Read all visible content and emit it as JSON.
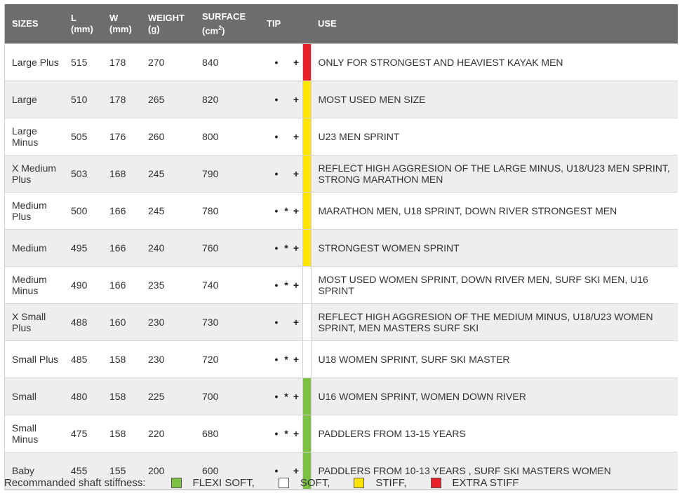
{
  "headers": {
    "sizes": "SIZES",
    "l": "L",
    "l_unit": "(mm)",
    "w": "W",
    "w_unit": "(mm)",
    "weight": "WEIGHT",
    "weight_unit": "(g)",
    "surface": "SURFACE",
    "surface_unit_pre": "(cm",
    "surface_unit_sup": "2",
    "surface_unit_post": ")",
    "tip": "TIP",
    "use": "USE"
  },
  "colors": {
    "flexi_soft": "#7dc142",
    "soft": "#ffffff",
    "stiff": "#ffe500",
    "extra_stiff": "#e8202a"
  },
  "rows": [
    {
      "size": "Large Plus",
      "l": "515",
      "w": "178",
      "weight": "270",
      "surface": "840",
      "tip": [
        "•",
        "",
        "+"
      ],
      "stiffness": "extra_stiff",
      "use": "ONLY FOR STRONGEST AND HEAVIEST KAYAK MEN"
    },
    {
      "size": "Large",
      "l": "510",
      "w": "178",
      "weight": "265",
      "surface": "820",
      "tip": [
        "•",
        "",
        "+"
      ],
      "stiffness": "stiff",
      "use": "MOST USED MEN SIZE"
    },
    {
      "size": "Large Minus",
      "l": "505",
      "w": "176",
      "weight": "260",
      "surface": "800",
      "tip": [
        "•",
        "",
        "+"
      ],
      "stiffness": "stiff",
      "use": "U23 MEN SPRINT"
    },
    {
      "size": "X Medium Plus",
      "l": "503",
      "w": "168",
      "weight": "245",
      "surface": "790",
      "tip": [
        "•",
        "",
        "+"
      ],
      "stiffness": "stiff",
      "use": "REFLECT HIGH AGGRESION OF THE LARGE MINUS, U18/U23 MEN SPRINT, STRONG MARATHON MEN"
    },
    {
      "size": "Medium Plus",
      "l": "500",
      "w": "166",
      "weight": "245",
      "surface": "780",
      "tip": [
        "•",
        "*",
        "+"
      ],
      "stiffness": "stiff",
      "use": "MARATHON MEN, U18 SPRINT, DOWN RIVER STRONGEST MEN"
    },
    {
      "size": "Medium",
      "l": "495",
      "w": "166",
      "weight": "240",
      "surface": "760",
      "tip": [
        "•",
        "*",
        "+"
      ],
      "stiffness": "stiff",
      "use": "STRONGEST WOMEN SPRINT"
    },
    {
      "size": "Medium Minus",
      "l": "490",
      "w": "166",
      "weight": "235",
      "surface": "740",
      "tip": [
        "•",
        "*",
        "+"
      ],
      "stiffness": "soft",
      "use": "MOST USED WOMEN SPRINT, DOWN RIVER MEN, SURF SKI MEN, U16 SPRINT"
    },
    {
      "size": "X Small Plus",
      "l": "488",
      "w": "160",
      "weight": "230",
      "surface": "730",
      "tip": [
        "•",
        "",
        "+"
      ],
      "stiffness": "soft",
      "use": "REFLECT HIGH AGGRESION OF THE MEDIUM MINUS, U18/U23 WOMEN SPRINT, MEN MASTERS SURF SKI"
    },
    {
      "size": "Small Plus",
      "l": "485",
      "w": "158",
      "weight": "230",
      "surface": "720",
      "tip": [
        "•",
        "*",
        "+"
      ],
      "stiffness": "soft",
      "use": "U18 WOMEN SPRINT, SURF SKI MASTER"
    },
    {
      "size": "Small",
      "l": "480",
      "w": "158",
      "weight": "225",
      "surface": "700",
      "tip": [
        "•",
        "*",
        "+"
      ],
      "stiffness": "flexi_soft",
      "use": "U16 WOMEN SPRINT, WOMEN DOWN RIVER"
    },
    {
      "size": "Small Minus",
      "l": "475",
      "w": "158",
      "weight": "220",
      "surface": "680",
      "tip": [
        "•",
        "*",
        "+"
      ],
      "stiffness": "flexi_soft",
      "use": "PADDLERS FROM 13-15 YEARS"
    },
    {
      "size": "Baby",
      "l": "455",
      "w": "155",
      "weight": "200",
      "surface": "600",
      "tip": [
        "•",
        "",
        "+"
      ],
      "stiffness": "flexi_soft",
      "use": "PADDLERS FROM 10-13 YEARS , SURF SKI MASTERS WOMEN"
    }
  ],
  "legend": {
    "label": "Recommanded shaft stiffness:",
    "items": [
      {
        "key": "flexi_soft",
        "label": "FLEXI SOFT,"
      },
      {
        "key": "soft",
        "label": "SOFT,"
      },
      {
        "key": "stiff",
        "label": "STIFF,"
      },
      {
        "key": "extra_stiff",
        "label": "EXTRA STIFF"
      }
    ]
  }
}
